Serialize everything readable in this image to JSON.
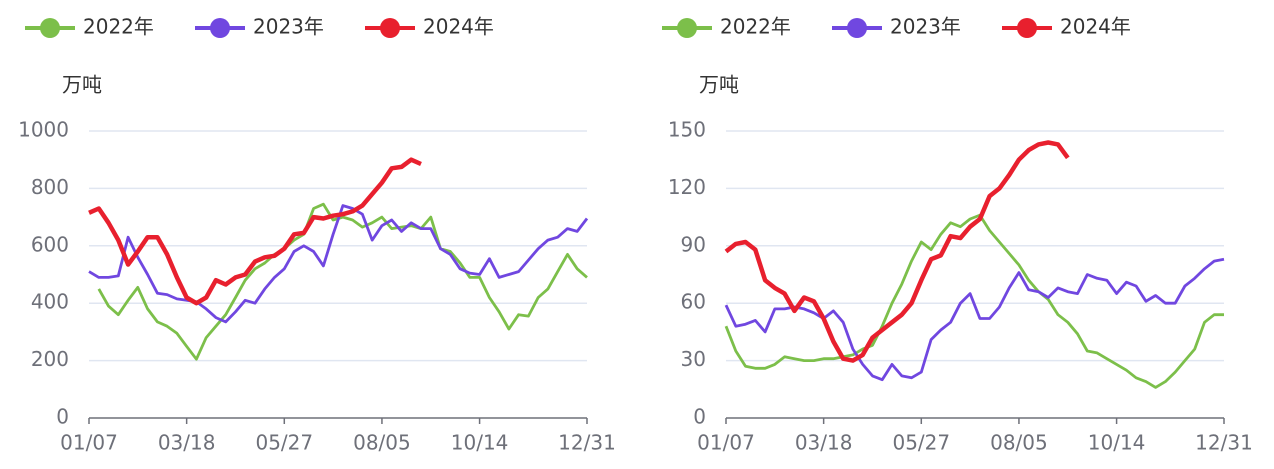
{
  "chart_data": [
    {
      "type": "line",
      "y_label": "万吨",
      "categories": [
        "01/07",
        null,
        null,
        null,
        null,
        null,
        null,
        null,
        null,
        null,
        "03/18",
        null,
        null,
        null,
        null,
        null,
        null,
        null,
        null,
        null,
        "05/27",
        null,
        null,
        null,
        null,
        null,
        null,
        null,
        null,
        null,
        "08/05",
        null,
        null,
        null,
        null,
        null,
        null,
        null,
        null,
        null,
        "10/14",
        null,
        null,
        null,
        null,
        null,
        null,
        null,
        null,
        null,
        null,
        "12/31"
      ],
      "ylim": [
        0,
        1000
      ],
      "yticks": [
        0,
        200,
        400,
        600,
        800,
        1000
      ],
      "grid": true,
      "legend": "top",
      "series": [
        {
          "name": "2022年",
          "color": "#7cbf4a",
          "values": [
            null,
            450,
            390,
            360,
            410,
            455,
            380,
            335,
            320,
            295,
            250,
            205,
            280,
            320,
            360,
            420,
            480,
            520,
            540,
            570,
            590,
            620,
            640,
            730,
            745,
            690,
            700,
            690,
            665,
            680,
            700,
            660,
            665,
            670,
            660,
            700,
            590,
            580,
            540,
            490,
            490,
            420,
            370,
            310,
            360,
            355,
            420,
            450,
            510,
            570,
            520,
            490
          ]
        },
        {
          "name": "2023年",
          "color": "#7047e0",
          "values": [
            510,
            490,
            490,
            495,
            630,
            560,
            500,
            435,
            430,
            415,
            410,
            405,
            380,
            350,
            335,
            370,
            410,
            400,
            450,
            490,
            520,
            580,
            600,
            580,
            530,
            640,
            740,
            730,
            710,
            620,
            670,
            690,
            650,
            680,
            660,
            660,
            590,
            570,
            520,
            505,
            500,
            555,
            490,
            500,
            510,
            550,
            590,
            620,
            630,
            660,
            650,
            695
          ]
        },
        {
          "name": "2024年",
          "color": "#e8202e",
          "values": [
            715,
            730,
            680,
            620,
            535,
            580,
            630,
            630,
            570,
            490,
            420,
            400,
            420,
            480,
            465,
            490,
            500,
            545,
            560,
            565,
            590,
            640,
            645,
            700,
            695,
            705,
            710,
            720,
            740,
            780,
            820,
            870,
            875,
            900,
            885,
            null,
            null,
            null,
            null,
            null,
            null,
            null,
            null,
            null,
            null,
            null,
            null,
            null,
            null,
            null,
            null,
            null
          ]
        }
      ]
    },
    {
      "type": "line",
      "y_label": "万吨",
      "categories": [
        "01/07",
        null,
        null,
        null,
        null,
        null,
        null,
        null,
        null,
        null,
        "03/18",
        null,
        null,
        null,
        null,
        null,
        null,
        null,
        null,
        null,
        "05/27",
        null,
        null,
        null,
        null,
        null,
        null,
        null,
        null,
        null,
        "08/05",
        null,
        null,
        null,
        null,
        null,
        null,
        null,
        null,
        null,
        "10/14",
        null,
        null,
        null,
        null,
        null,
        null,
        null,
        null,
        null,
        null,
        "12/31"
      ],
      "ylim": [
        0,
        150
      ],
      "yticks": [
        0,
        30,
        60,
        90,
        120,
        150
      ],
      "grid": true,
      "legend": "top",
      "series": [
        {
          "name": "2022年",
          "color": "#7cbf4a",
          "values": [
            48,
            35,
            27,
            26,
            26,
            28,
            32,
            31,
            30,
            30,
            31,
            31,
            32,
            33,
            36,
            38,
            48,
            60,
            70,
            82,
            92,
            88,
            96,
            102,
            100,
            104,
            106,
            98,
            92,
            86,
            80,
            72,
            66,
            62,
            54,
            50,
            44,
            35,
            34,
            31,
            28,
            25,
            21,
            19,
            16,
            19,
            24,
            30,
            36,
            50,
            54,
            54
          ]
        },
        {
          "name": "2023年",
          "color": "#7047e0",
          "values": [
            59,
            48,
            49,
            51,
            45,
            57,
            57,
            58,
            57,
            55,
            52,
            56,
            50,
            36,
            28,
            22,
            20,
            28,
            22,
            21,
            24,
            41,
            46,
            50,
            60,
            65,
            52,
            52,
            58,
            68,
            76,
            67,
            66,
            63,
            68,
            66,
            65,
            75,
            73,
            72,
            65,
            71,
            69,
            61,
            64,
            60,
            60,
            69,
            73,
            78,
            82,
            83
          ]
        },
        {
          "name": "2024年",
          "color": "#e8202e",
          "values": [
            87,
            91,
            92,
            88,
            72,
            68,
            65,
            56,
            63,
            61,
            52,
            40,
            31,
            30,
            33,
            42,
            46,
            50,
            54,
            60,
            72,
            83,
            85,
            95,
            94,
            100,
            104,
            116,
            120,
            127,
            135,
            140,
            143,
            144,
            143,
            136,
            null,
            null,
            null,
            null,
            null,
            null,
            null,
            null,
            null,
            null,
            null,
            null,
            null,
            null,
            null,
            null
          ]
        }
      ]
    }
  ]
}
